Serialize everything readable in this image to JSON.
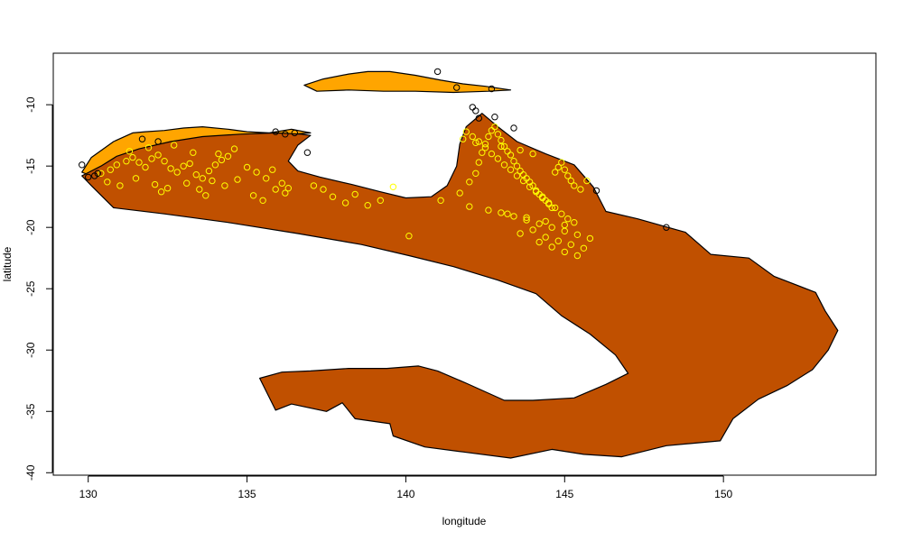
{
  "chart_data": {
    "type": "scatter",
    "title": "",
    "xlabel": "longitude",
    "ylabel": "latitude",
    "xlim": [
      128.9,
      154.8
    ],
    "ylim": [
      -40.2,
      -5.8
    ],
    "x_ticks": [
      130,
      135,
      140,
      145,
      150
    ],
    "y_ticks": [
      -10,
      -15,
      -20,
      -25,
      -30,
      -35,
      -40
    ],
    "grid": false,
    "legend": "none",
    "colors": {
      "region_dark": "#C05000",
      "region_light": "#FFA500",
      "points_main": "#FFFF00",
      "points_dark": "#000000",
      "outline": "#000000"
    },
    "regions": [
      {
        "fill": "light",
        "polygon": [
          [
            129.8,
            -15.5
          ],
          [
            130.1,
            -14.3
          ],
          [
            130.8,
            -13.0
          ],
          [
            131.4,
            -12.3
          ],
          [
            131.8,
            -12.2
          ],
          [
            132.4,
            -12.1
          ],
          [
            133.0,
            -11.9
          ],
          [
            133.6,
            -11.8
          ],
          [
            134.4,
            -12.0
          ],
          [
            135.0,
            -12.2
          ],
          [
            135.7,
            -12.3
          ],
          [
            136.4,
            -12.0
          ],
          [
            137.0,
            -12.3
          ],
          [
            134.0,
            -12.9
          ],
          [
            132.0,
            -13.6
          ],
          [
            130.6,
            -14.8
          ],
          [
            130.2,
            -15.9
          ],
          [
            129.8,
            -15.5
          ]
        ]
      },
      {
        "fill": "light",
        "polygon": [
          [
            136.8,
            -8.4
          ],
          [
            137.4,
            -7.9
          ],
          [
            138.2,
            -7.5
          ],
          [
            138.8,
            -7.3
          ],
          [
            139.5,
            -7.3
          ],
          [
            140.3,
            -7.6
          ],
          [
            141.1,
            -8.0
          ],
          [
            141.8,
            -8.3
          ],
          [
            142.5,
            -8.5
          ],
          [
            143.3,
            -8.8
          ],
          [
            142.6,
            -8.9
          ],
          [
            141.5,
            -9.0
          ],
          [
            140.3,
            -8.9
          ],
          [
            139.3,
            -8.9
          ],
          [
            138.2,
            -8.8
          ],
          [
            137.2,
            -8.9
          ],
          [
            136.8,
            -8.4
          ]
        ]
      },
      {
        "fill": "dark",
        "polygon": [
          [
            129.8,
            -15.8
          ],
          [
            130.4,
            -15.0
          ],
          [
            130.9,
            -14.2
          ],
          [
            131.6,
            -13.6
          ],
          [
            132.6,
            -13.0
          ],
          [
            133.6,
            -12.6
          ],
          [
            134.8,
            -12.4
          ],
          [
            135.9,
            -12.3
          ],
          [
            136.7,
            -12.4
          ],
          [
            137.0,
            -12.5
          ],
          [
            136.6,
            -13.3
          ],
          [
            136.3,
            -14.6
          ],
          [
            136.6,
            -15.4
          ],
          [
            137.3,
            -15.9
          ],
          [
            138.3,
            -16.5
          ],
          [
            139.2,
            -17.1
          ],
          [
            140.0,
            -17.6
          ],
          [
            140.8,
            -17.5
          ],
          [
            141.3,
            -16.6
          ],
          [
            141.6,
            -15.0
          ],
          [
            141.7,
            -13.2
          ],
          [
            141.9,
            -11.8
          ],
          [
            142.4,
            -10.7
          ],
          [
            142.9,
            -11.8
          ],
          [
            143.5,
            -13.0
          ],
          [
            144.4,
            -14.0
          ],
          [
            145.3,
            -14.9
          ],
          [
            145.9,
            -16.7
          ],
          [
            146.3,
            -18.7
          ],
          [
            147.3,
            -19.3
          ],
          [
            148.8,
            -20.4
          ],
          [
            149.6,
            -22.2
          ],
          [
            150.8,
            -22.5
          ],
          [
            151.6,
            -24.0
          ],
          [
            152.9,
            -25.3
          ],
          [
            153.2,
            -26.8
          ],
          [
            153.6,
            -28.4
          ],
          [
            153.3,
            -30.0
          ],
          [
            152.8,
            -31.6
          ],
          [
            152.0,
            -32.9
          ],
          [
            151.1,
            -34.0
          ],
          [
            150.3,
            -35.6
          ],
          [
            149.9,
            -37.4
          ],
          [
            148.2,
            -37.8
          ],
          [
            146.8,
            -38.7
          ],
          [
            145.6,
            -38.5
          ],
          [
            144.6,
            -38.1
          ],
          [
            143.3,
            -38.8
          ],
          [
            141.8,
            -38.3
          ],
          [
            140.6,
            -37.9
          ],
          [
            139.6,
            -37.0
          ],
          [
            139.5,
            -36.0
          ],
          [
            138.4,
            -35.6
          ],
          [
            138.0,
            -34.3
          ],
          [
            137.5,
            -35.0
          ],
          [
            136.4,
            -34.4
          ],
          [
            135.9,
            -34.9
          ],
          [
            135.4,
            -32.3
          ],
          [
            136.1,
            -31.8
          ],
          [
            137.0,
            -31.7
          ],
          [
            138.2,
            -31.5
          ],
          [
            139.4,
            -31.5
          ],
          [
            140.4,
            -31.3
          ],
          [
            141.0,
            -31.7
          ],
          [
            141.9,
            -32.7
          ],
          [
            143.1,
            -34.1
          ],
          [
            144.0,
            -34.1
          ],
          [
            145.3,
            -33.9
          ],
          [
            146.3,
            -32.8
          ],
          [
            147.0,
            -31.9
          ],
          [
            146.6,
            -30.4
          ],
          [
            145.8,
            -28.7
          ],
          [
            144.9,
            -27.2
          ],
          [
            144.1,
            -25.4
          ],
          [
            142.9,
            -24.3
          ],
          [
            141.5,
            -23.2
          ],
          [
            140.1,
            -22.3
          ],
          [
            138.6,
            -21.4
          ],
          [
            136.6,
            -20.5
          ],
          [
            134.4,
            -19.6
          ],
          [
            132.4,
            -18.9
          ],
          [
            130.8,
            -18.4
          ],
          [
            130.1,
            -16.6
          ],
          [
            129.8,
            -15.8
          ]
        ]
      }
    ],
    "series": [
      {
        "marker": "open circle",
        "color": "points_main",
        "x": [
          130.4,
          130.7,
          130.9,
          131.2,
          131.4,
          131.6,
          131.8,
          132.0,
          132.2,
          132.4,
          132.6,
          132.8,
          133.0,
          133.2,
          133.4,
          133.6,
          133.8,
          134.0,
          134.2,
          134.4,
          130.6,
          131.0,
          131.5,
          132.1,
          132.5,
          133.1,
          133.5,
          133.9,
          134.3,
          134.7,
          131.3,
          131.9,
          132.7,
          133.3,
          134.1,
          134.6,
          132.3,
          133.7,
          135.0,
          135.3,
          135.6,
          135.8,
          136.1,
          136.3,
          135.2,
          135.5,
          135.9,
          136.2,
          137.1,
          137.4,
          137.7,
          138.1,
          138.4,
          138.8,
          139.2,
          139.6,
          140.1,
          141.1,
          141.7,
          142.0,
          142.2,
          142.3,
          142.4,
          142.5,
          142.6,
          142.7,
          142.8,
          142.9,
          143.0,
          143.1,
          143.2,
          143.3,
          143.4,
          143.5,
          143.6,
          143.7,
          143.8,
          143.9,
          144.0,
          144.1,
          144.2,
          144.3,
          144.4,
          144.5,
          144.6,
          144.7,
          144.8,
          144.9,
          145.0,
          145.1,
          145.2,
          145.3,
          145.5,
          145.7,
          141.9,
          142.1,
          142.3,
          142.5,
          142.7,
          142.9,
          143.1,
          143.3,
          143.5,
          143.7,
          143.9,
          144.1,
          144.3,
          144.5,
          144.7,
          144.9,
          145.1,
          145.3,
          143.0,
          143.4,
          143.8,
          144.2,
          144.6,
          145.0,
          145.4,
          145.8,
          143.6,
          144.0,
          144.4,
          144.8,
          145.2,
          145.6,
          142.0,
          142.6,
          143.2,
          143.8,
          144.4,
          145.0,
          144.2,
          144.6,
          145.0,
          145.4,
          141.8,
          142.2,
          143.0,
          143.6,
          144.0
        ],
        "y": [
          -15.6,
          -15.3,
          -14.9,
          -14.6,
          -14.3,
          -14.7,
          -15.1,
          -14.4,
          -14.1,
          -14.6,
          -15.2,
          -15.5,
          -15.0,
          -14.8,
          -15.7,
          -16.0,
          -15.4,
          -14.9,
          -14.5,
          -14.2,
          -16.3,
          -16.6,
          -16.0,
          -16.5,
          -16.8,
          -16.4,
          -16.9,
          -16.2,
          -16.6,
          -16.1,
          -13.8,
          -13.5,
          -13.3,
          -13.9,
          -14.0,
          -13.6,
          -17.1,
          -17.4,
          -15.1,
          -15.5,
          -16.0,
          -15.3,
          -16.4,
          -16.8,
          -17.4,
          -17.8,
          -16.9,
          -17.2,
          -16.6,
          -16.9,
          -17.5,
          -18.0,
          -17.3,
          -18.2,
          -17.8,
          -16.7,
          -20.7,
          -17.8,
          -17.2,
          -16.3,
          -15.6,
          -14.7,
          -13.9,
          -13.2,
          -12.6,
          -12.1,
          -11.8,
          -12.4,
          -12.9,
          -13.4,
          -13.8,
          -14.1,
          -14.6,
          -15.0,
          -15.4,
          -15.7,
          -16.0,
          -16.3,
          -16.6,
          -17.0,
          -17.3,
          -17.5,
          -17.8,
          -18.1,
          -18.4,
          -15.5,
          -15.1,
          -14.7,
          -15.3,
          -15.8,
          -16.2,
          -16.6,
          -16.9,
          -16.2,
          -12.2,
          -12.6,
          -13.0,
          -13.5,
          -14.0,
          -14.4,
          -14.9,
          -15.3,
          -15.8,
          -16.2,
          -16.7,
          -17.1,
          -17.6,
          -18.0,
          -18.4,
          -18.9,
          -19.3,
          -19.6,
          -18.8,
          -19.1,
          -19.4,
          -19.7,
          -20.0,
          -20.3,
          -20.6,
          -20.9,
          -20.5,
          -20.2,
          -20.8,
          -21.1,
          -21.4,
          -21.7,
          -18.3,
          -18.6,
          -18.9,
          -19.2,
          -19.5,
          -19.8,
          -21.2,
          -21.6,
          -22.0,
          -22.3,
          -12.8,
          -13.1,
          -13.4,
          -13.7,
          -14.0
        ]
      },
      {
        "marker": "open circle",
        "color": "points_dark",
        "x": [
          129.8,
          130.0,
          130.2,
          130.3,
          131.7,
          132.2,
          135.9,
          136.2,
          136.5,
          136.9,
          141.0,
          141.6,
          142.7,
          142.1,
          142.2,
          142.3,
          142.8,
          143.4,
          146.0,
          148.2
        ],
        "y": [
          -14.9,
          -15.9,
          -15.8,
          -15.6,
          -12.8,
          -13.0,
          -12.2,
          -12.4,
          -12.3,
          -13.9,
          -7.3,
          -8.6,
          -8.7,
          -10.2,
          -10.5,
          -11.1,
          -11.0,
          -11.9,
          -17.0,
          -20.0
        ]
      }
    ]
  }
}
